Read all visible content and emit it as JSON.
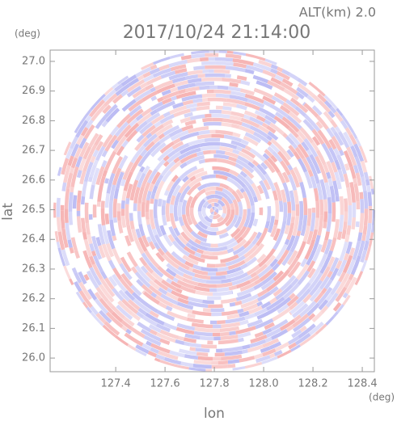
{
  "chart_data": {
    "type": "ppi",
    "title": "2017/10/24 21:14:00",
    "annotation": "ALT(km) 2.0",
    "x_label": "lon",
    "y_label": "lat",
    "x_unit": "(deg)",
    "y_unit": "(deg)",
    "xlim": [
      127.134,
      128.449
    ],
    "ylim": [
      25.954,
      27.038
    ],
    "xticks": [
      127.4,
      127.6,
      127.8,
      {
        "value": 128,
        "label": "128.0"
      },
      128.2,
      128.4
    ],
    "yticks": [
      {
        "value": 26,
        "label": "26.0"
      },
      26.1,
      26.2,
      26.3,
      26.4,
      26.5,
      26.6,
      26.7,
      26.8,
      26.9,
      {
        "value": 27,
        "label": "27.0"
      }
    ],
    "colors": [
      "#f6b3b3",
      "#bcbcf4"
    ]
  }
}
